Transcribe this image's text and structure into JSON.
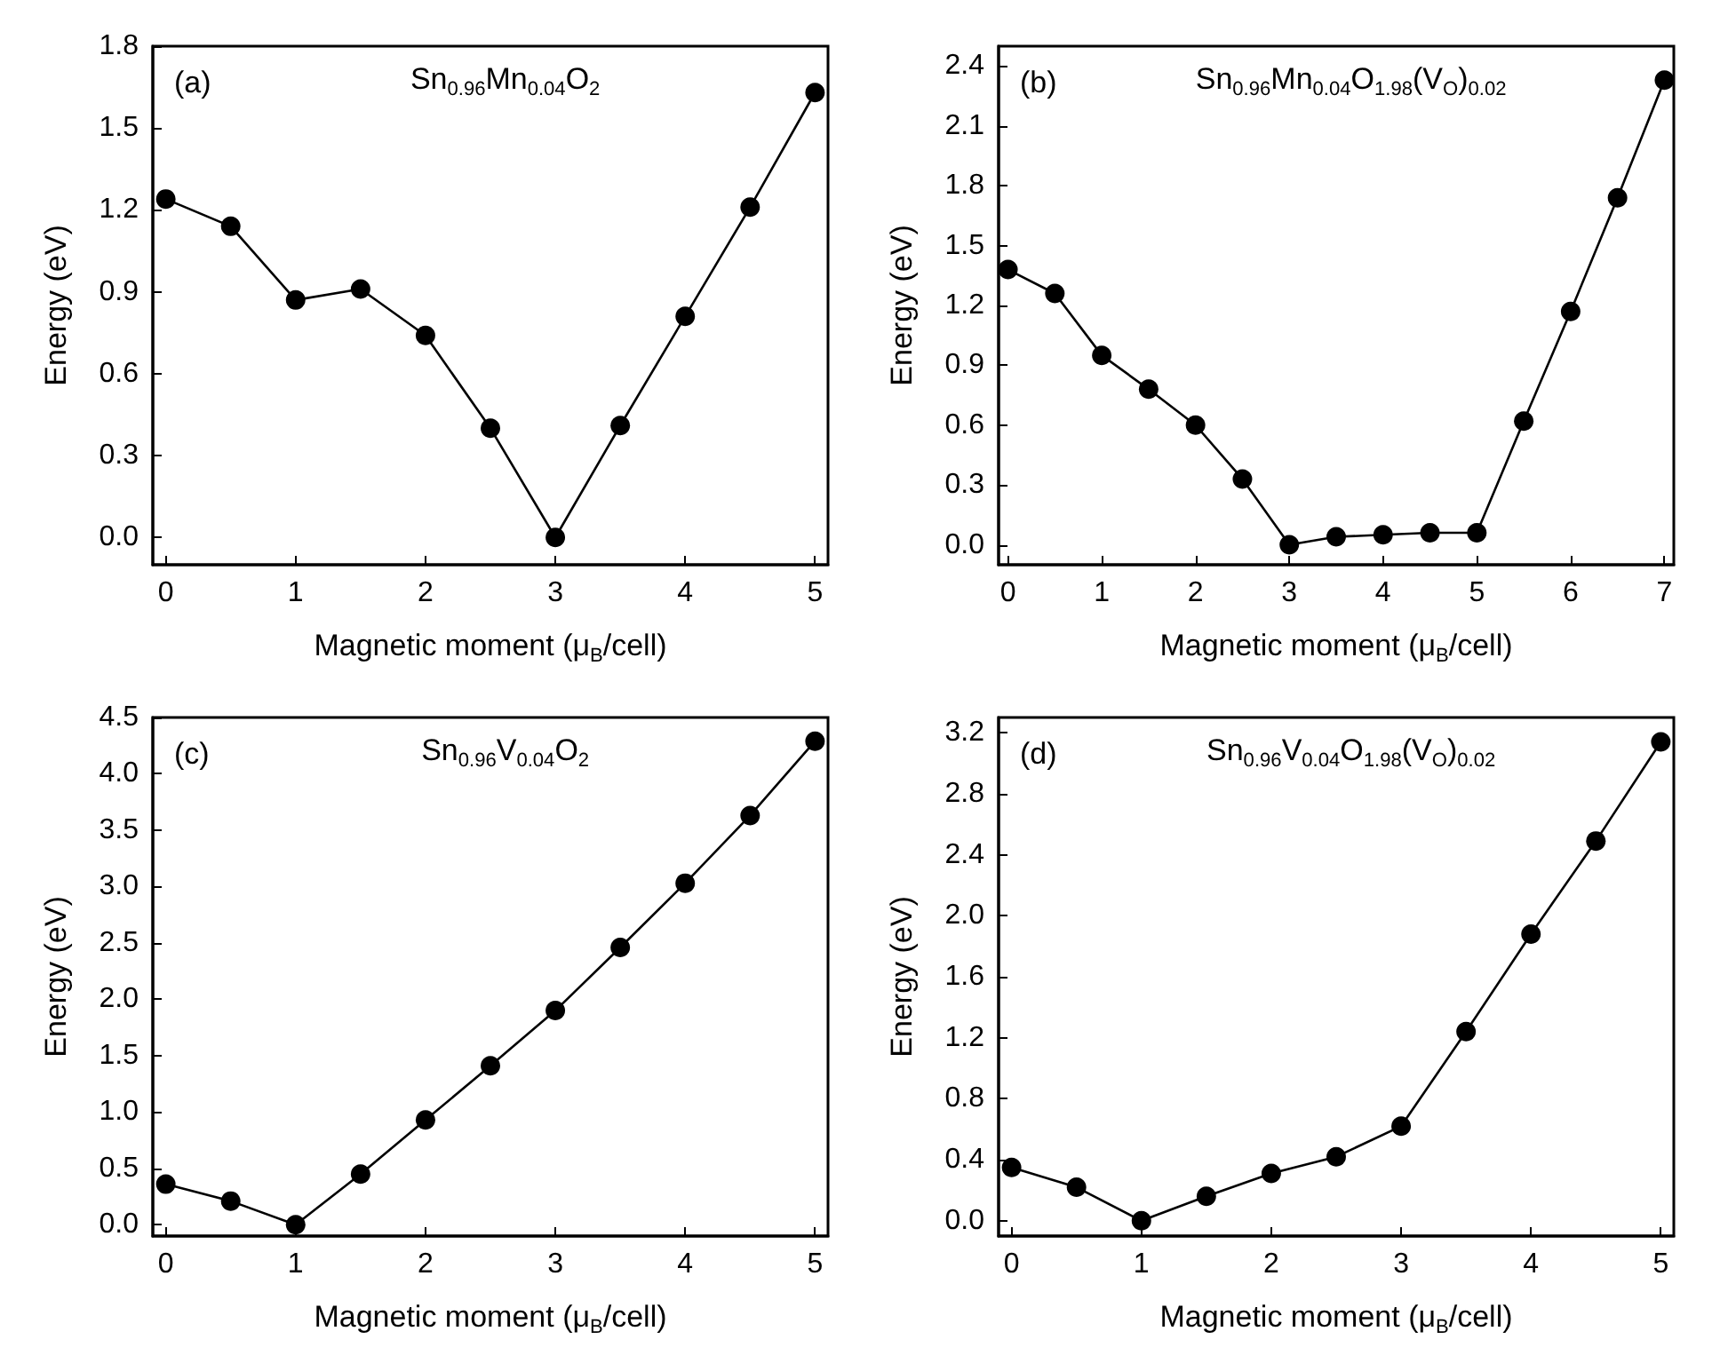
{
  "chart_data": [
    {
      "type": "line",
      "title": "Sn$_{0.96}$Mn$_{0.04}$O$_{2}$",
      "annotations": [
        "(a)"
      ],
      "xlabel": "Magnetic moment (μ$_{B}$/cell)",
      "ylabel": "Energy (eV)",
      "marker": "circle",
      "line_style": "solid",
      "x": [
        0,
        0.5,
        1,
        1.5,
        2,
        2.5,
        3,
        3.5,
        4,
        4.5,
        5
      ],
      "series": [
        {
          "color": "#000000",
          "values": [
            1.24,
            1.14,
            0.87,
            0.91,
            0.74,
            0.4,
            0.0,
            0.41,
            0.81,
            1.21,
            1.63
          ]
        }
      ],
      "xlim": [
        -0.1,
        5.1
      ],
      "xticks": [
        0,
        1,
        2,
        3,
        4,
        5
      ],
      "ylim": [
        -0.1,
        1.8
      ],
      "yticks": [
        {
          "value": 0,
          "label": "0.0"
        },
        0.3,
        0.6,
        0.9,
        1.2,
        1.5,
        1.8
      ]
    },
    {
      "type": "line",
      "title": "Sn$_{0.96}$Mn$_{0.04}$O$_{1.98}$(V$_{O}$)$_{0.02}$",
      "annotations": [
        "(b)"
      ],
      "xlabel": "Magnetic moment (μ$_{B}$/cell)",
      "ylabel": "Energy (eV)",
      "marker": "circle",
      "line_style": "solid",
      "x": [
        0,
        0.5,
        1,
        1.5,
        2,
        2.5,
        3,
        3.5,
        4,
        4.5,
        5,
        5.5,
        6,
        6.5,
        7
      ],
      "series": [
        {
          "color": "#000000",
          "values": [
            1.38,
            1.26,
            0.95,
            0.78,
            0.6,
            0.33,
            0.0,
            0.04,
            0.05,
            0.06,
            0.06,
            0.62,
            1.17,
            1.74,
            2.33
          ]
        }
      ],
      "xlim": [
        -0.1,
        7.1
      ],
      "xticks": [
        0,
        1,
        2,
        3,
        4,
        5,
        6,
        7
      ],
      "ylim": [
        -0.1,
        2.5
      ],
      "yticks": [
        {
          "value": 0,
          "label": "0.0"
        },
        0.3,
        0.6,
        0.9,
        1.2,
        1.5,
        1.8,
        2.1,
        2.4
      ]
    },
    {
      "type": "line",
      "title": "Sn$_{0.96}$V$_{0.04}$O$_{2}$",
      "annotations": [
        "(c)"
      ],
      "xlabel": "Magnetic moment (μ$_{B}$/cell)",
      "ylabel": "Energy (eV)",
      "marker": "circle",
      "line_style": "solid",
      "x": [
        0,
        0.5,
        1,
        1.5,
        2,
        2.5,
        3,
        3.5,
        4,
        4.5,
        5
      ],
      "series": [
        {
          "color": "#000000",
          "values": [
            0.36,
            0.21,
            0.0,
            0.45,
            0.93,
            1.41,
            1.9,
            2.46,
            3.03,
            3.63,
            4.29
          ]
        }
      ],
      "xlim": [
        -0.1,
        5.1
      ],
      "xticks": [
        0,
        1,
        2,
        3,
        4,
        5
      ],
      "ylim": [
        -0.1,
        4.5
      ],
      "yticks": [
        {
          "value": 0,
          "label": "0.0"
        },
        0.5,
        {
          "value": 1,
          "label": "1.0"
        },
        1.5,
        {
          "value": 2,
          "label": "2.0"
        },
        2.5,
        {
          "value": 3,
          "label": "3.0"
        },
        3.5,
        {
          "value": 4,
          "label": "4.0"
        },
        4.5
      ]
    },
    {
      "type": "line",
      "title": "Sn$_{0.96}$V$_{0.04}$O$_{1.98}$(V$_{O}$)$_{0.02}$",
      "annotations": [
        "(d)"
      ],
      "xlabel": "Magnetic moment (μ$_{B}$/cell)",
      "ylabel": "Energy (eV)",
      "marker": "circle",
      "line_style": "solid",
      "x": [
        0,
        0.5,
        1,
        1.5,
        2,
        2.5,
        3,
        3.5,
        4,
        4.5,
        5
      ],
      "series": [
        {
          "color": "#000000",
          "values": [
            0.35,
            0.22,
            0.0,
            0.16,
            0.31,
            0.42,
            0.62,
            1.24,
            1.88,
            2.49,
            3.14
          ]
        }
      ],
      "xlim": [
        -0.1,
        5.1
      ],
      "xticks": [
        0,
        1,
        2,
        3,
        4,
        5
      ],
      "ylim": [
        -0.1,
        3.3
      ],
      "yticks": [
        {
          "value": 0,
          "label": "0.0"
        },
        0.4,
        0.8,
        1.2,
        1.6,
        {
          "value": 2,
          "label": "2.0"
        },
        2.4,
        2.8,
        3.2
      ]
    }
  ]
}
